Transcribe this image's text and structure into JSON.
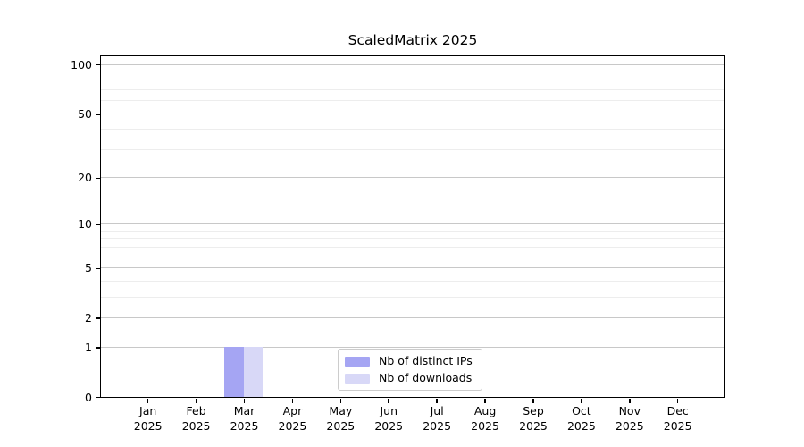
{
  "chart_data": {
    "type": "bar",
    "title": "ScaledMatrix 2025",
    "categories": [
      "Jan 2025",
      "Feb 2025",
      "Mar 2025",
      "Apr 2025",
      "May 2025",
      "Jun 2025",
      "Jul 2025",
      "Aug 2025",
      "Sep 2025",
      "Oct 2025",
      "Nov 2025",
      "Dec 2025"
    ],
    "series": [
      {
        "name": "Nb of distinct IPs",
        "color": "#a5a5f3",
        "values": [
          0,
          0,
          1,
          0,
          0,
          0,
          0,
          0,
          0,
          0,
          0,
          0
        ]
      },
      {
        "name": "Nb of downloads",
        "color": "#d8d8f7",
        "values": [
          0,
          0,
          1,
          0,
          0,
          0,
          0,
          0,
          0,
          0,
          0,
          0
        ]
      }
    ],
    "xlabel": "",
    "ylabel": "",
    "yscale": "log1p",
    "ylim": [
      0,
      112
    ],
    "y_major_ticks": [
      0,
      1,
      2,
      5,
      10,
      20,
      50,
      100
    ],
    "y_minor_gridlines": [
      3,
      4,
      6,
      7,
      8,
      9,
      30,
      40,
      60,
      70,
      80,
      90
    ],
    "grid": true,
    "legend_location": "lower center",
    "colors": {
      "bar_distinct_ips": "#a5a5f3",
      "bar_downloads": "#d8d8f7",
      "major_grid": "#c8c8c8",
      "minor_grid": "#ededed",
      "spine": "#000000",
      "text": "#000000",
      "background": "#ffffff"
    }
  }
}
